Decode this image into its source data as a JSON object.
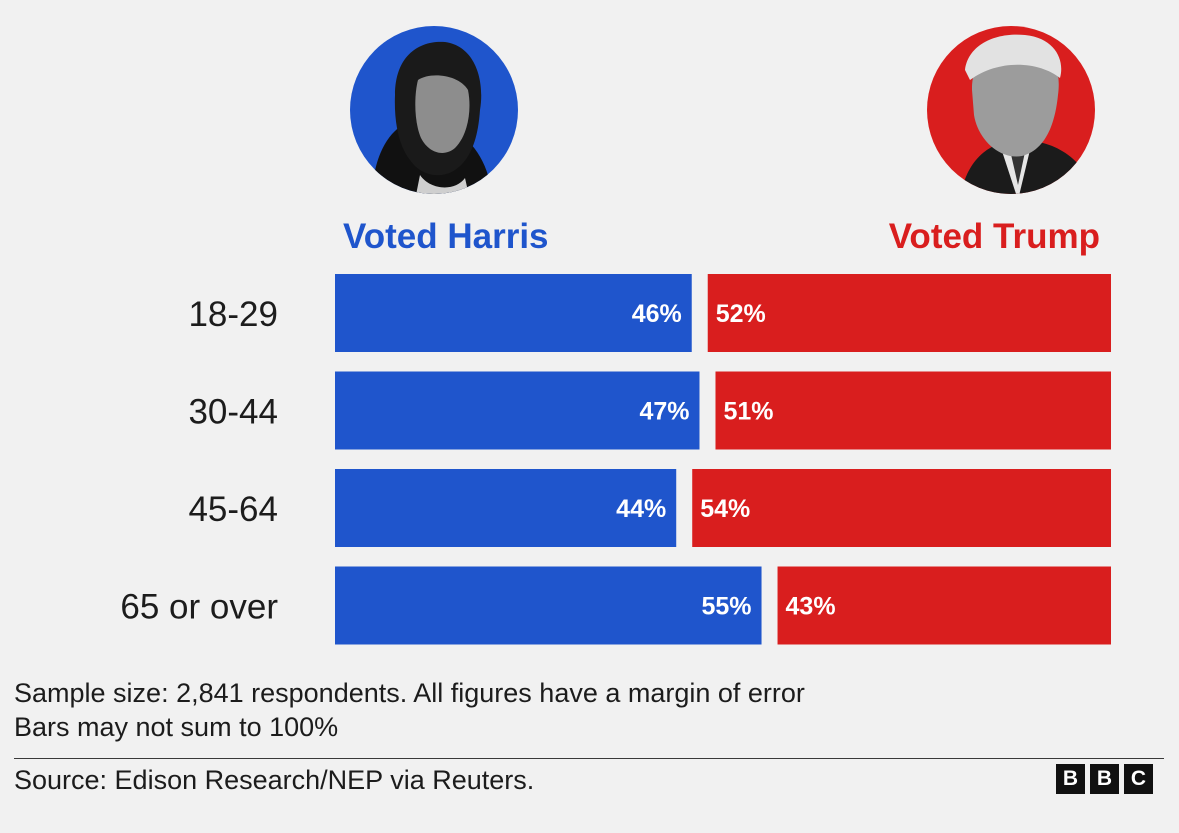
{
  "colors": {
    "harris": "#1f55cc",
    "trump": "#d91e1e",
    "background": "#f1f1f1",
    "text": "#1c1c1c"
  },
  "portraits": {
    "harris": {
      "icon": "harris-portrait-icon",
      "ring_color": "#1f55cc"
    },
    "trump": {
      "icon": "trump-portrait-icon",
      "ring_color": "#d91e1e"
    }
  },
  "chart_data": {
    "type": "bar",
    "orientation": "horizontal-diverging",
    "categories": [
      "18-29",
      "30-44",
      "45-64",
      "65 or over"
    ],
    "series": [
      {
        "name": "Voted Harris",
        "values": [
          46,
          47,
          44,
          55
        ],
        "color": "#1f55cc"
      },
      {
        "name": "Voted Trump",
        "values": [
          52,
          51,
          54,
          43
        ],
        "color": "#d91e1e"
      }
    ],
    "value_suffix": "%",
    "grid": false
  },
  "notes": {
    "line1": "Sample size: 2,841 respondents. All figures have a margin of error",
    "line2": "Bars may not sum to 100%"
  },
  "source": "Source: Edison Research/NEP via Reuters.",
  "logo": [
    "B",
    "B",
    "C"
  ]
}
